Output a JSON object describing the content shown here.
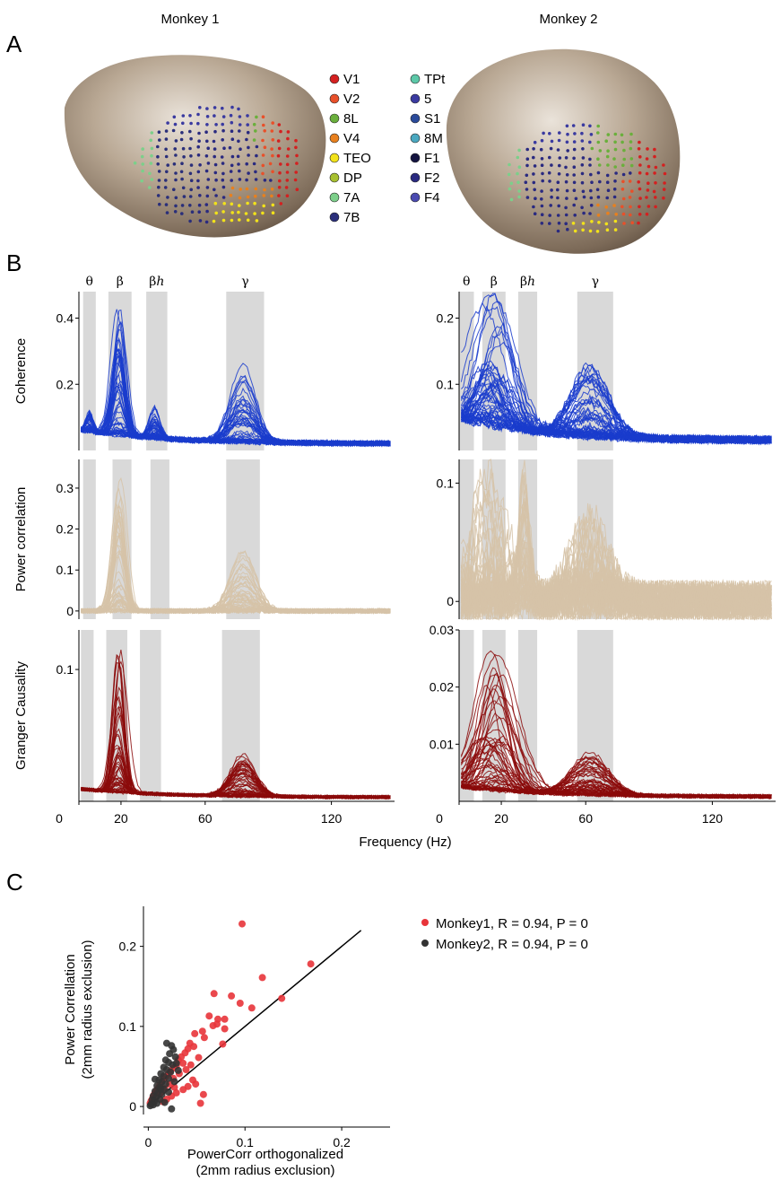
{
  "panel_letters": [
    "A",
    "B",
    "C"
  ],
  "panel_a": {
    "monkey1_title": "Monkey 1",
    "monkey2_title": "Monkey 2",
    "legend": [
      {
        "label": "V1",
        "color": "#d42020"
      },
      {
        "label": "V2",
        "color": "#e8502a"
      },
      {
        "label": "8L",
        "color": "#6aaf3c"
      },
      {
        "label": "V4",
        "color": "#e8801e"
      },
      {
        "label": "TEO",
        "color": "#f2e21a"
      },
      {
        "label": "DP",
        "color": "#a8c030"
      },
      {
        "label": "7A",
        "color": "#7ccf8a"
      },
      {
        "label": "7B",
        "color": "#2a2f7a"
      },
      {
        "label": "TPt",
        "color": "#5cc8a8"
      },
      {
        "label": "5",
        "color": "#3a3aa0"
      },
      {
        "label": "S1",
        "color": "#2a4a9a"
      },
      {
        "label": "8M",
        "color": "#4aa8c0"
      },
      {
        "label": "F1",
        "color": "#141440"
      },
      {
        "label": "F2",
        "color": "#2a2a80"
      },
      {
        "label": "F4",
        "color": "#4a4ab0"
      }
    ]
  },
  "panel_b": {
    "band_labels": [
      "θ",
      "β",
      "βh",
      "γ"
    ],
    "xlabel": "Frequency (Hz)",
    "row_labels": [
      "Coherence",
      "Power correlation",
      "Granger Causality"
    ],
    "x_ticks": [
      "0",
      "20",
      "60",
      "120"
    ],
    "colors": {
      "coherence": "#1a3ccc",
      "power": "#d6c3a8",
      "granger": "#8b0a0a",
      "band": "#d9d9d9"
    }
  },
  "chart_data": [
    {
      "type": "line",
      "panel": "B",
      "row": "Coherence",
      "monkey": "Monkey 1",
      "ylabel": "Coherence",
      "xlim": [
        0,
        150
      ],
      "ylim": [
        0,
        0.48
      ],
      "yticks": [
        {
          "v": 0.2,
          "label": "0.2"
        },
        {
          "v": 0.4,
          "label": "0.4"
        }
      ],
      "bands": [
        [
          2,
          8
        ],
        [
          14,
          25
        ],
        [
          32,
          42
        ],
        [
          70,
          88
        ]
      ],
      "peak_max": {
        "theta": 0.06,
        "beta": 0.46,
        "beta_h": 0.09,
        "gamma": 0.26
      },
      "baseline": 0.02
    },
    {
      "type": "line",
      "panel": "B",
      "row": "Coherence",
      "monkey": "Monkey 2",
      "ylabel": "",
      "xlim": [
        0,
        150
      ],
      "ylim": [
        0,
        0.24
      ],
      "yticks": [
        {
          "v": 0.1,
          "label": "0.1"
        },
        {
          "v": 0.2,
          "label": "0.2"
        }
      ],
      "bands": [
        [
          0,
          7
        ],
        [
          11,
          22
        ],
        [
          28,
          37
        ],
        [
          56,
          73
        ]
      ],
      "peak_max": {
        "beta": 0.23,
        "gamma": 0.11
      },
      "baseline": 0.015
    },
    {
      "type": "line",
      "panel": "B",
      "row": "Power correlation",
      "monkey": "Monkey 1",
      "ylabel": "Power correlation",
      "xlim": [
        0,
        150
      ],
      "ylim": [
        -0.02,
        0.37
      ],
      "yticks": [
        {
          "v": 0,
          "label": "0"
        },
        {
          "v": 0.1,
          "label": "0.1"
        },
        {
          "v": 0.2,
          "label": "0.2"
        },
        {
          "v": 0.3,
          "label": "0.3"
        }
      ],
      "bands": [
        [
          2,
          8
        ],
        [
          16,
          25
        ],
        [
          34,
          43
        ],
        [
          70,
          86
        ]
      ],
      "peak_max": {
        "beta": 0.33,
        "gamma": 0.15
      },
      "baseline": 0.0
    },
    {
      "type": "line",
      "panel": "B",
      "row": "Power correlation",
      "monkey": "Monkey 2",
      "ylabel": "",
      "xlim": [
        0,
        150
      ],
      "ylim": [
        -0.015,
        0.12
      ],
      "yticks": [
        {
          "v": 0,
          "label": "0"
        },
        {
          "v": 0.1,
          "label": "0.1"
        }
      ],
      "bands": [
        [
          0,
          7
        ],
        [
          11,
          22
        ],
        [
          28,
          37
        ],
        [
          56,
          73
        ]
      ],
      "peak_max": {
        "beta": 0.11,
        "beta_h": 0.11,
        "gamma": 0.07
      },
      "baseline": 0.0
    },
    {
      "type": "line",
      "panel": "B",
      "row": "Granger Causality",
      "monkey": "Monkey 1",
      "ylabel": "Granger Causality",
      "xlim": [
        0,
        150
      ],
      "ylim": [
        0,
        0.13
      ],
      "yticks": [
        {
          "v": 0.1,
          "label": "0.1"
        }
      ],
      "bands": [
        [
          1,
          7
        ],
        [
          13,
          23
        ],
        [
          29,
          39
        ],
        [
          68,
          86
        ]
      ],
      "peak_max": {
        "beta": 0.11,
        "gamma": 0.036
      },
      "baseline": 0.003
    },
    {
      "type": "line",
      "panel": "B",
      "row": "Granger Causality",
      "monkey": "Monkey 2",
      "ylabel": "",
      "xlim": [
        0,
        150
      ],
      "ylim": [
        0,
        0.03
      ],
      "yticks": [
        {
          "v": 0.01,
          "label": "0.01"
        },
        {
          "v": 0.02,
          "label": "0.02"
        },
        {
          "v": 0.03,
          "label": "0.03"
        }
      ],
      "bands": [
        [
          0,
          7
        ],
        [
          11,
          22
        ],
        [
          28,
          37
        ],
        [
          56,
          73
        ]
      ],
      "peak_max": {
        "beta": 0.027,
        "gamma": 0.008
      },
      "baseline": 0.0008
    },
    {
      "type": "scatter",
      "panel": "C",
      "xlabel": "PowerCorr orthogonalized (2mm radius exclusion)",
      "ylabel": "Power Correllation (2mm radius exclusion)",
      "xlim": [
        -0.005,
        0.25
      ],
      "ylim": [
        -0.01,
        0.25
      ],
      "xticks": [
        {
          "v": 0,
          "label": "0"
        },
        {
          "v": 0.1,
          "label": "0.1"
        },
        {
          "v": 0.2,
          "label": "0.2"
        }
      ],
      "yticks": [
        {
          "v": 0,
          "label": "0"
        },
        {
          "v": 0.1,
          "label": "0.1"
        },
        {
          "v": 0.2,
          "label": "0.2"
        }
      ],
      "identity_line": [
        [
          0,
          0
        ],
        [
          0.22,
          0.22
        ]
      ],
      "series": [
        {
          "name": "Monkey1, R = 0.94, P = 0",
          "color": "#e8343a",
          "points": [
            [
              0.097,
              0.228
            ],
            [
              0.168,
              0.178
            ],
            [
              0.118,
              0.161
            ],
            [
              0.138,
              0.135
            ],
            [
              0.068,
              0.141
            ],
            [
              0.086,
              0.138
            ],
            [
              0.095,
              0.129
            ],
            [
              0.107,
              0.123
            ],
            [
              0.072,
              0.109
            ],
            [
              0.079,
              0.109
            ],
            [
              0.063,
              0.113
            ],
            [
              0.067,
              0.101
            ],
            [
              0.071,
              0.103
            ],
            [
              0.079,
              0.097
            ],
            [
              0.056,
              0.094
            ],
            [
              0.077,
              0.078
            ],
            [
              0.058,
              0.086
            ],
            [
              0.048,
              0.091
            ],
            [
              0.052,
              0.061
            ],
            [
              0.047,
              0.075
            ],
            [
              0.043,
              0.079
            ],
            [
              0.041,
              0.072
            ],
            [
              0.038,
              0.067
            ],
            [
              0.034,
              0.062
            ],
            [
              0.031,
              0.058
            ],
            [
              0.036,
              0.054
            ],
            [
              0.029,
              0.051
            ],
            [
              0.026,
              0.048
            ],
            [
              0.023,
              0.044
            ],
            [
              0.021,
              0.041
            ],
            [
              0.018,
              0.037
            ],
            [
              0.016,
              0.034
            ],
            [
              0.014,
              0.031
            ],
            [
              0.012,
              0.027
            ],
            [
              0.011,
              0.024
            ],
            [
              0.009,
              0.021
            ],
            [
              0.008,
              0.018
            ],
            [
              0.006,
              0.015
            ],
            [
              0.005,
              0.012
            ],
            [
              0.004,
              0.009
            ],
            [
              0.003,
              0.007
            ],
            [
              0.002,
              0.004
            ],
            [
              0.026,
              0.035
            ],
            [
              0.032,
              0.041
            ],
            [
              0.039,
              0.046
            ],
            [
              0.044,
              0.052
            ],
            [
              0.049,
              0.028
            ],
            [
              0.054,
              0.004
            ],
            [
              0.057,
              0.015
            ],
            [
              0.046,
              0.033
            ],
            [
              0.041,
              0.025
            ],
            [
              0.036,
              0.021
            ],
            [
              0.029,
              0.017
            ],
            [
              0.024,
              0.013
            ],
            [
              0.019,
              0.009
            ],
            [
              0.015,
              0.006
            ],
            [
              0.012,
              0.016
            ],
            [
              0.022,
              0.028
            ],
            [
              0.017,
              0.022
            ],
            [
              0.027,
              0.024
            ]
          ]
        },
        {
          "name": "Monkey2, R = 0.94, P = 0",
          "color": "#333333",
          "points": [
            [
              0.019,
              0.079
            ],
            [
              0.024,
              0.076
            ],
            [
              0.026,
              0.071
            ],
            [
              0.022,
              0.066
            ],
            [
              0.028,
              0.062
            ],
            [
              0.018,
              0.058
            ],
            [
              0.021,
              0.055
            ],
            [
              0.025,
              0.052
            ],
            [
              0.016,
              0.049
            ],
            [
              0.019,
              0.046
            ],
            [
              0.023,
              0.043
            ],
            [
              0.013,
              0.041
            ],
            [
              0.016,
              0.038
            ],
            [
              0.021,
              0.035
            ],
            [
              0.011,
              0.033
            ],
            [
              0.014,
              0.031
            ],
            [
              0.018,
              0.028
            ],
            [
              0.009,
              0.026
            ],
            [
              0.012,
              0.024
            ],
            [
              0.016,
              0.021
            ],
            [
              0.007,
              0.019
            ],
            [
              0.01,
              0.017
            ],
            [
              0.014,
              0.015
            ],
            [
              0.005,
              0.013
            ],
            [
              0.008,
              0.011
            ],
            [
              0.012,
              0.009
            ],
            [
              0.004,
              0.008
            ],
            [
              0.006,
              0.006
            ],
            [
              0.009,
              0.004
            ],
            [
              0.003,
              0.003
            ],
            [
              0.005,
              0.002
            ],
            [
              0.002,
              0.001
            ],
            [
              0.017,
              0.005
            ],
            [
              0.021,
              0.018
            ],
            [
              0.027,
              0.031
            ],
            [
              0.031,
              0.045
            ],
            [
              0.029,
              0.054
            ],
            [
              0.007,
              0.034
            ],
            [
              0.024,
              -0.003
            ],
            [
              0.013,
              0.022
            ]
          ]
        }
      ]
    }
  ],
  "panel_c_legend": [
    "Monkey1, R = 0.94, P = 0",
    "Monkey2, R = 0.94, P = 0"
  ]
}
